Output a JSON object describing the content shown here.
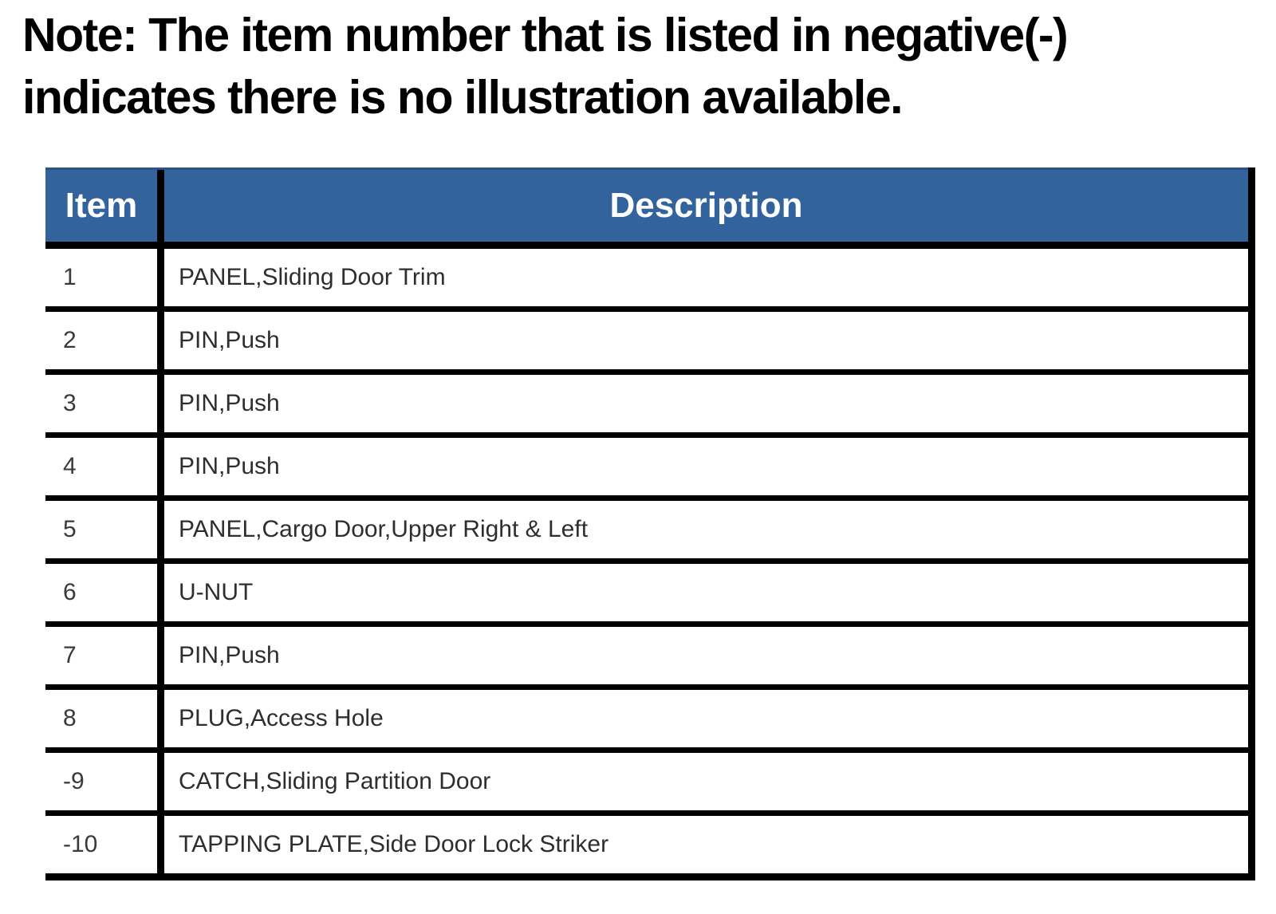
{
  "note": {
    "line1": "Note: The item number that is listed in negative(-)",
    "line2": "indicates there is no illustration available."
  },
  "table": {
    "header_bg_color": "#33639C",
    "header_text_color": "#FFFFFF",
    "rule_color": "#000000",
    "headers": {
      "item": "Item",
      "description": "Description"
    },
    "rows": [
      {
        "item": "1",
        "description": "PANEL,Sliding Door Trim"
      },
      {
        "item": "2",
        "description": "PIN,Push"
      },
      {
        "item": "3",
        "description": "PIN,Push"
      },
      {
        "item": "4",
        "description": "PIN,Push"
      },
      {
        "item": "5",
        "description": "PANEL,Cargo Door,Upper Right & Left"
      },
      {
        "item": "6",
        "description": "U-NUT"
      },
      {
        "item": "7",
        "description": "PIN,Push"
      },
      {
        "item": "8",
        "description": "PLUG,Access Hole"
      },
      {
        "item": "-9",
        "description": "CATCH,Sliding Partition Door"
      },
      {
        "item": "-10",
        "description": "TAPPING PLATE,Side Door Lock Striker"
      }
    ]
  }
}
